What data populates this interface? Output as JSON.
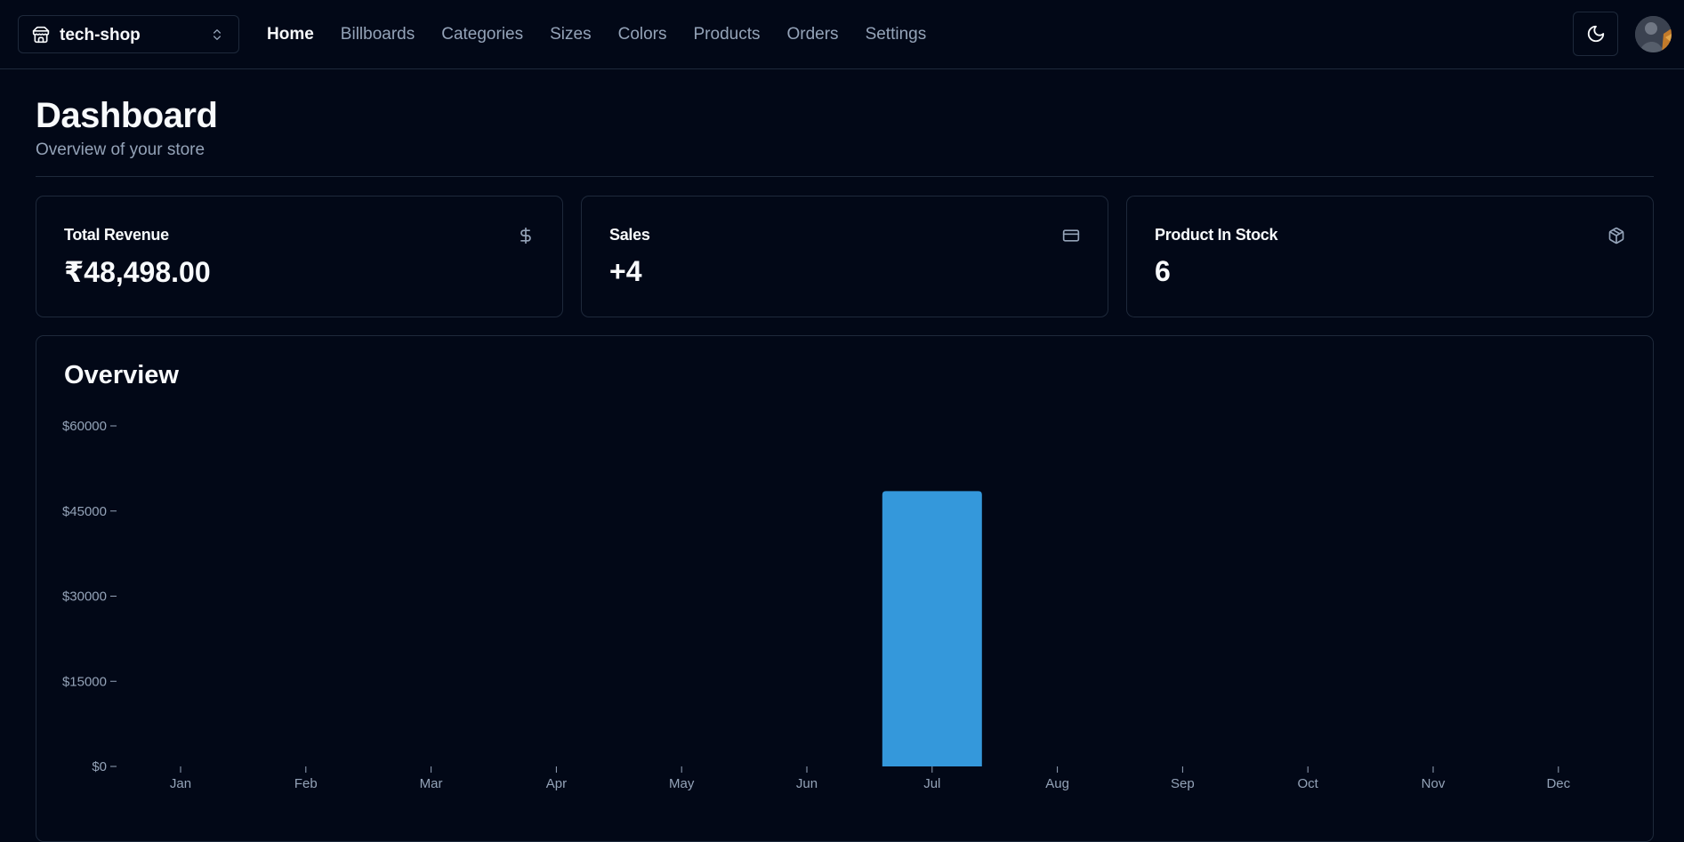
{
  "navbar": {
    "store_name": "tech-shop",
    "links": [
      {
        "label": "Home",
        "active": true
      },
      {
        "label": "Billboards",
        "active": false
      },
      {
        "label": "Categories",
        "active": false
      },
      {
        "label": "Sizes",
        "active": false
      },
      {
        "label": "Colors",
        "active": false
      },
      {
        "label": "Products",
        "active": false
      },
      {
        "label": "Orders",
        "active": false
      },
      {
        "label": "Settings",
        "active": false
      }
    ],
    "icons": {
      "store": "store-icon",
      "switcher": "chevrons-up-down-icon",
      "theme": "moon-icon"
    }
  },
  "header": {
    "title": "Dashboard",
    "subtitle": "Overview of your store"
  },
  "cards": [
    {
      "label": "Total Revenue",
      "value": "₹48,498.00",
      "icon": "dollar-sign-icon"
    },
    {
      "label": "Sales",
      "value": "+4",
      "icon": "credit-card-icon"
    },
    {
      "label": "Product In Stock",
      "value": "6",
      "icon": "package-icon"
    }
  ],
  "overview": {
    "title": "Overview"
  },
  "colors": {
    "background": "#020817",
    "border": "#1e293b",
    "muted_text": "#94a3b8",
    "bar": "#3498db"
  },
  "chart_data": {
    "type": "bar",
    "categories": [
      "Jan",
      "Feb",
      "Mar",
      "Apr",
      "May",
      "Jun",
      "Jul",
      "Aug",
      "Sep",
      "Oct",
      "Nov",
      "Dec"
    ],
    "values": [
      0,
      0,
      0,
      0,
      0,
      0,
      48498,
      0,
      0,
      0,
      0,
      0
    ],
    "ylim": [
      0,
      60000
    ],
    "yticks": [
      0,
      15000,
      30000,
      45000,
      60000
    ],
    "ytick_labels": [
      "$0",
      "$15000",
      "$30000",
      "$45000",
      "$60000"
    ],
    "title": "",
    "xlabel": "",
    "ylabel": "",
    "grid": false,
    "legend": "none"
  }
}
